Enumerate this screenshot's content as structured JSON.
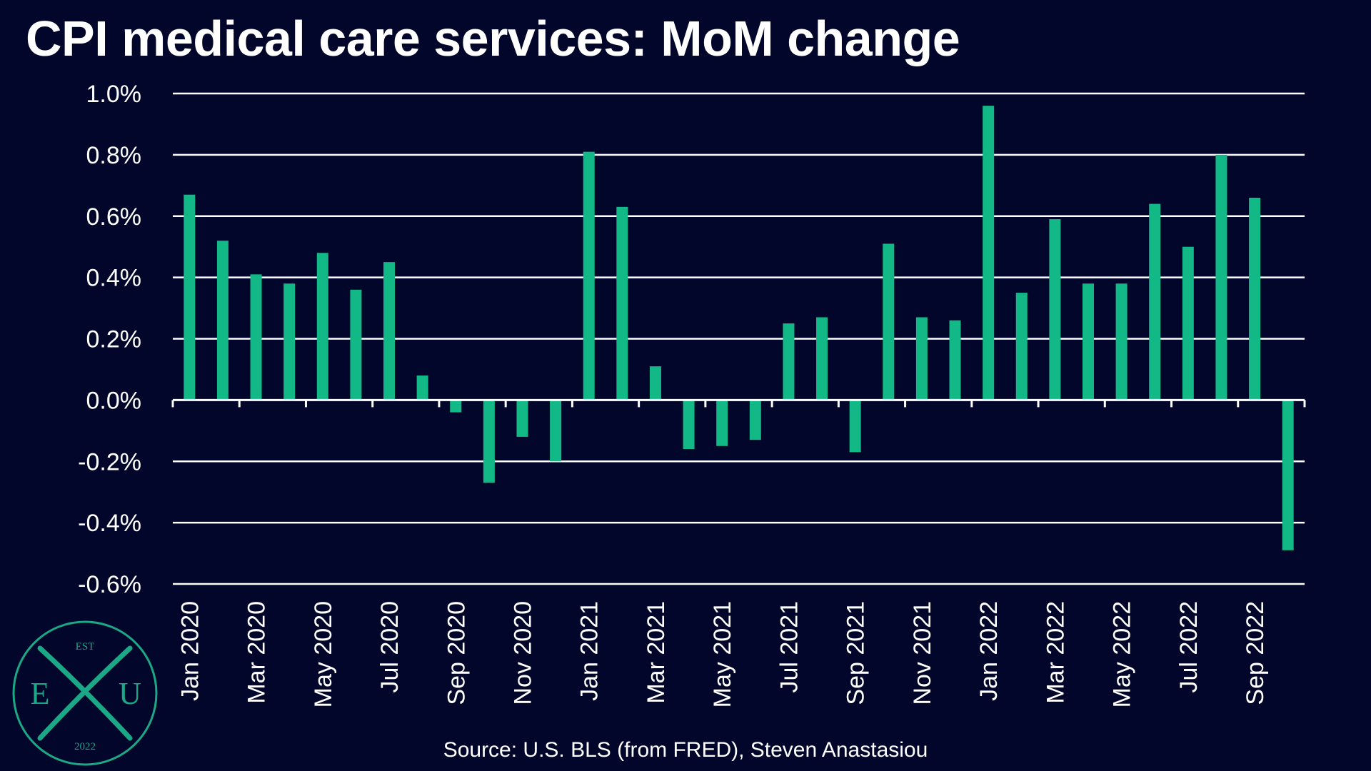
{
  "chart_data": {
    "type": "bar",
    "title": "CPI medical care services: MoM change",
    "xlabel": "",
    "ylabel": "",
    "ylim": [
      -0.6,
      1.0
    ],
    "yticks": [
      "1.0%",
      "0.8%",
      "0.6%",
      "0.4%",
      "0.2%",
      "0.0%",
      "-0.2%",
      "-0.4%",
      "-0.6%"
    ],
    "grid": true,
    "bar_color": "#12b886",
    "categories": [
      "Jan 2020",
      "Feb 2020",
      "Mar 2020",
      "Apr 2020",
      "May 2020",
      "Jun 2020",
      "Jul 2020",
      "Aug 2020",
      "Sep 2020",
      "Oct 2020",
      "Nov 2020",
      "Dec 2020",
      "Jan 2021",
      "Feb 2021",
      "Mar 2021",
      "Apr 2021",
      "May 2021",
      "Jun 2021",
      "Jul 2021",
      "Aug 2021",
      "Sep 2021",
      "Oct 2021",
      "Nov 2021",
      "Dec 2021",
      "Jan 2022",
      "Feb 2022",
      "Mar 2022",
      "Apr 2022",
      "May 2022",
      "Jun 2022",
      "Jul 2022",
      "Aug 2022",
      "Sep 2022",
      "Oct 2022"
    ],
    "xtick_labels": [
      "Jan 2020",
      "Mar 2020",
      "May 2020",
      "Jul 2020",
      "Sep 2020",
      "Nov 2020",
      "Jan 2021",
      "Mar 2021",
      "May 2021",
      "Jul 2021",
      "Sep 2021",
      "Nov 2021",
      "Jan 2022",
      "Mar 2022",
      "May 2022",
      "Jul 2022",
      "Sep 2022"
    ],
    "values": [
      0.67,
      0.52,
      0.41,
      0.38,
      0.48,
      0.36,
      0.45,
      0.08,
      -0.04,
      -0.27,
      -0.12,
      -0.2,
      0.81,
      0.63,
      0.11,
      -0.16,
      -0.15,
      -0.13,
      0.25,
      0.27,
      -0.17,
      0.51,
      0.27,
      0.26,
      0.96,
      0.35,
      0.59,
      0.38,
      0.38,
      0.64,
      0.5,
      0.8,
      0.66,
      -0.49
    ]
  },
  "source_text": "Source: U.S. BLS (from FRED), Steven Anastasiou",
  "logo": {
    "top_text": "EST",
    "left_letter": "E",
    "center_letter": "X",
    "right_letter": "U",
    "bottom_text": "2022"
  },
  "colors": {
    "background": "#02062a",
    "bar": "#12b886",
    "grid": "#ffffff",
    "logo": "#1aa886"
  }
}
